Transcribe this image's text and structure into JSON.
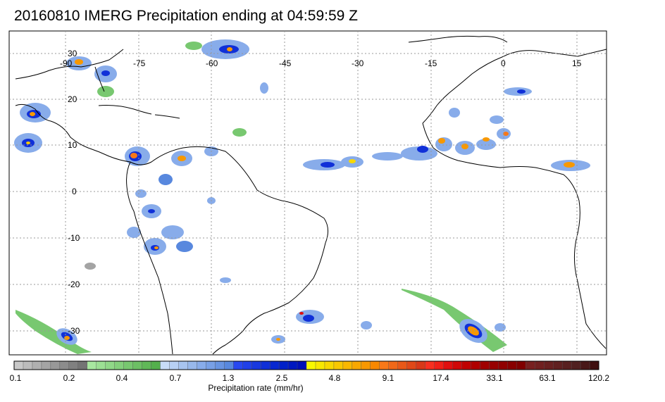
{
  "title": "20160810 IMERG Precipitation ending at 04:59:59 Z",
  "map": {
    "lon_ticks": [
      "-90",
      "-75",
      "-60",
      "-45",
      "-30",
      "-15",
      "0",
      "15"
    ],
    "lat_ticks": [
      "30",
      "20",
      "10",
      "0",
      "-10",
      "-20",
      "-30"
    ],
    "grid": true
  },
  "colorbar": {
    "title": "Precipitation rate (mm/hr)",
    "labels": [
      "0.1",
      "0.2",
      "0.4",
      "0.7",
      "1.3",
      "2.5",
      "4.8",
      "9.1",
      "17.4",
      "33.1",
      "63.1",
      "120.2"
    ],
    "colors": [
      "#c8c8c8",
      "#bcbcbc",
      "#b0b0b0",
      "#a4a4a4",
      "#989898",
      "#8c8c8c",
      "#808080",
      "#747474",
      "#a8e8a0",
      "#9ce094",
      "#90d888",
      "#84d07c",
      "#78c870",
      "#6cc064",
      "#60b858",
      "#54b04c",
      "#c8dcf8",
      "#b8d0f4",
      "#a8c4f0",
      "#98b8ec",
      "#88acea",
      "#78a0e6",
      "#6894e2",
      "#5888de",
      "#2848f0",
      "#2040e8",
      "#1838e0",
      "#1030d8",
      "#0828d0",
      "#0020c8",
      "#0018c0",
      "#0010b8",
      "#f8f800",
      "#f8e800",
      "#f8d800",
      "#f8c800",
      "#f8b800",
      "#f8a800",
      "#f89800",
      "#f88800",
      "#f87818",
      "#f06818",
      "#e85818",
      "#e04818",
      "#d83818",
      "#f83020",
      "#f02018",
      "#e01010",
      "#d00808",
      "#c00000",
      "#b00000",
      "#a00000",
      "#980000",
      "#900000",
      "#880000",
      "#800000",
      "#782020",
      "#702020",
      "#682020",
      "#602020",
      "#582020",
      "#502020",
      "#481818",
      "#401010"
    ]
  }
}
